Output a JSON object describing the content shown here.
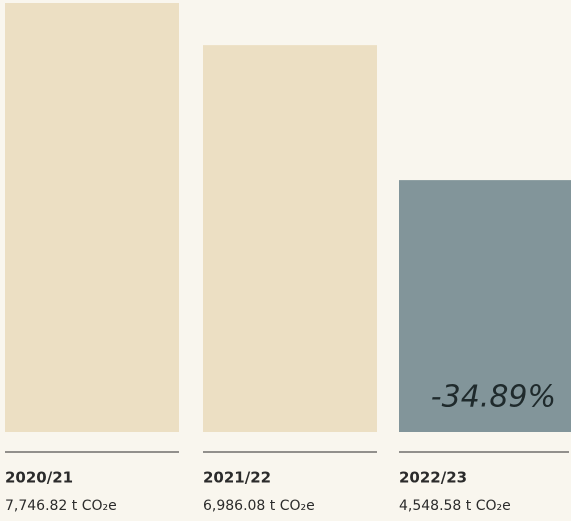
{
  "chart_data": {
    "type": "bar",
    "categories": [
      "2020/21",
      "2021/22",
      "2022/23"
    ],
    "values": [
      7746.82,
      6986.08,
      4548.58
    ],
    "value_labels": [
      "7,746.82 t CO₂e",
      "6,986.08 t CO₂e",
      "4,548.58 t CO₂e"
    ],
    "colors": [
      "#ecdfc3",
      "#ecdfc3",
      "#82959a"
    ],
    "annotation": "-34.89%"
  }
}
